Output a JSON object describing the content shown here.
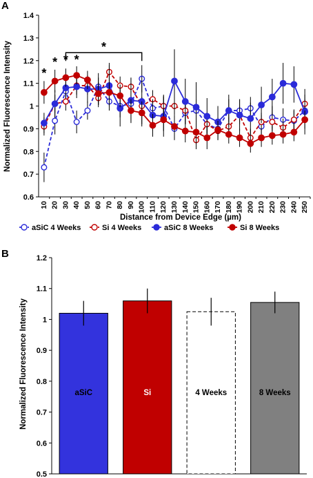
{
  "panel_a": {
    "label": "A",
    "chart_data": {
      "type": "line",
      "title": "",
      "xlabel": "Distance from Device Edge (µm)",
      "ylabel": "Normalized Fluorescence Intensity",
      "ylim": [
        0.6,
        1.4
      ],
      "yticks": [
        "0.6",
        "0.7",
        "0.8",
        "0.9",
        "1",
        "1.1",
        "1.2",
        "1.3",
        "1.4"
      ],
      "x": [
        "10",
        "20",
        "30",
        "40",
        "50",
        "60",
        "70",
        "80",
        "90",
        "100",
        "110",
        "120",
        "130",
        "140",
        "150",
        "160",
        "170",
        "180",
        "190",
        "200",
        "210",
        "220",
        "230",
        "240",
        "250"
      ],
      "series": [
        {
          "name": "aSiC 4 Weeks",
          "color": "#2b2bd9",
          "marker": "open-circle",
          "dashed": true,
          "values": [
            0.73,
            0.935,
            1.065,
            0.93,
            0.98,
            1.085,
            1.02,
            1.0,
            1.01,
            1.12,
            0.99,
            1.0,
            0.9,
            0.97,
            0.98,
            0.92,
            0.9,
            0.98,
            0.98,
            0.99,
            0.91,
            0.95,
            0.94,
            0.935,
            0.98
          ],
          "errors": [
            0.065,
            0.06,
            0.035,
            0.05,
            0.04,
            0.04,
            0.04,
            0.05,
            0.04,
            0.06,
            0.05,
            0.05,
            0.05,
            0.05,
            0.05,
            0.05,
            0.05,
            0.05,
            0.05,
            0.05,
            0.05,
            0.05,
            0.05,
            0.05,
            0.05
          ]
        },
        {
          "name": "Si 4 Weeks",
          "color": "#c00000",
          "marker": "open-circle",
          "dashed": true,
          "values": [
            0.91,
            1.01,
            1.02,
            1.09,
            1.09,
            1.035,
            1.15,
            1.09,
            1.085,
            1.0,
            1.03,
            1.0,
            1.0,
            0.98,
            0.85,
            0.92,
            0.89,
            0.91,
            0.96,
            0.86,
            0.93,
            0.93,
            0.905,
            0.94,
            1.01
          ],
          "errors": [
            0.04,
            0.04,
            0.04,
            0.04,
            0.04,
            0.04,
            0.04,
            0.04,
            0.04,
            0.04,
            0.04,
            0.04,
            0.04,
            0.04,
            0.04,
            0.04,
            0.04,
            0.04,
            0.04,
            0.04,
            0.04,
            0.04,
            0.04,
            0.04,
            0.04
          ]
        },
        {
          "name": "aSiC 8 Weeks",
          "color": "#2b2bd9",
          "marker": "filled-circle",
          "dashed": false,
          "values": [
            0.925,
            1.01,
            1.08,
            1.085,
            1.075,
            1.075,
            1.09,
            0.99,
            1.025,
            1.02,
            0.96,
            0.955,
            1.11,
            1.02,
            0.995,
            0.955,
            0.93,
            0.98,
            0.96,
            0.945,
            1.005,
            1.04,
            1.1,
            1.095,
            0.975
          ],
          "errors": [
            0.045,
            0.06,
            0.045,
            0.05,
            0.06,
            0.07,
            0.09,
            0.08,
            0.1,
            0.11,
            0.07,
            0.09,
            0.14,
            0.1,
            0.11,
            0.08,
            0.07,
            0.07,
            0.07,
            0.07,
            0.08,
            0.08,
            0.09,
            0.08,
            0.1
          ]
        },
        {
          "name": "Si 8 Weeks",
          "color": "#c00000",
          "marker": "filled-circle",
          "dashed": false,
          "values": [
            1.06,
            1.11,
            1.125,
            1.135,
            1.115,
            1.055,
            1.06,
            1.045,
            0.98,
            0.97,
            0.915,
            0.94,
            0.91,
            0.89,
            0.885,
            0.86,
            0.895,
            0.875,
            0.86,
            0.835,
            0.86,
            0.87,
            0.875,
            0.885,
            0.94
          ],
          "errors": [
            0.05,
            0.05,
            0.04,
            0.04,
            0.04,
            0.05,
            0.05,
            0.05,
            0.05,
            0.05,
            0.05,
            0.05,
            0.05,
            0.05,
            0.05,
            0.05,
            0.04,
            0.04,
            0.04,
            0.04,
            0.04,
            0.04,
            0.04,
            0.04,
            0.04
          ]
        }
      ],
      "annotations": [
        {
          "text": "*",
          "x": "10",
          "y": 1.15
        },
        {
          "text": "*",
          "x": "20",
          "y": 1.2
        },
        {
          "text": "*",
          "x": "30",
          "y": 1.21
        },
        {
          "text": "*",
          "x": "40",
          "y": 1.21
        },
        {
          "text": "*",
          "bracket_from": "30",
          "bracket_to": "100",
          "y": 1.235
        }
      ],
      "grid": false,
      "legend": "bottom"
    }
  },
  "panel_b": {
    "label": "B",
    "chart_data": {
      "type": "bar",
      "title": "",
      "xlabel": "",
      "ylabel": "Normalized Fluorescence Intensity",
      "ylim": [
        0.5,
        1.2
      ],
      "yticks": [
        "0.5",
        "0.6",
        "0.7",
        "0.8",
        "0.9",
        "1",
        "1.1",
        "1.2"
      ],
      "categories": [
        "aSiC",
        "Si",
        "4 Weeks",
        "8 Weeks"
      ],
      "values": [
        1.02,
        1.06,
        1.025,
        1.055
      ],
      "errors": [
        0.04,
        0.04,
        0.045,
        0.035
      ],
      "colors": [
        "#3333dd",
        "#c00000",
        "#ffffff",
        "#808080"
      ],
      "label_colors": [
        "#000000",
        "#ffffff",
        "#000000",
        "#000000"
      ],
      "dashed": [
        false,
        false,
        true,
        false
      ],
      "legend": "none",
      "grid": false
    }
  }
}
